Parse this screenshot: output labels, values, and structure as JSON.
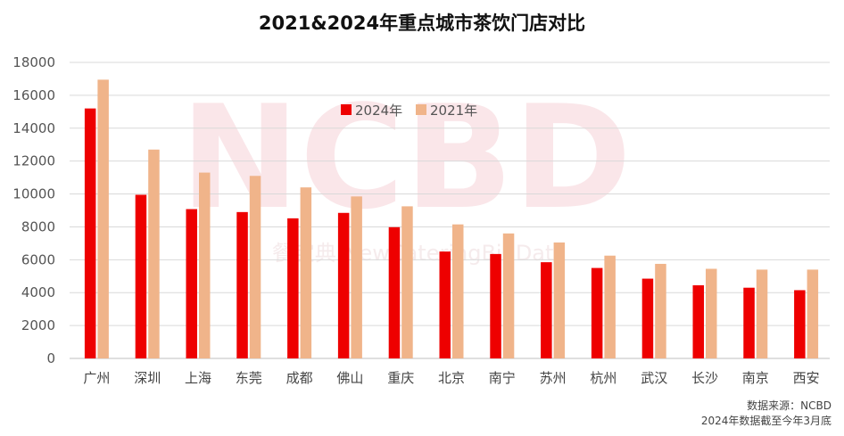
{
  "chart_data": {
    "type": "bar",
    "title": "2021&2024年重点城市茶饮门店对比",
    "categories": [
      "广州",
      "深圳",
      "上海",
      "东莞",
      "成都",
      "佛山",
      "重庆",
      "北京",
      "南宁",
      "苏州",
      "杭州",
      "武汉",
      "长沙",
      "南京",
      "西安"
    ],
    "series": [
      {
        "name": "2024年",
        "color": "#ee0000",
        "values": [
          15200,
          9950,
          9080,
          8900,
          8520,
          8850,
          7980,
          6500,
          6350,
          5850,
          5500,
          4850,
          4450,
          4300,
          4150
        ]
      },
      {
        "name": "2021年",
        "color": "#f0b48a",
        "values": [
          16950,
          12700,
          11300,
          11100,
          10400,
          9850,
          9250,
          8150,
          7600,
          7050,
          6250,
          5750,
          5450,
          5400,
          5400
        ]
      }
    ],
    "ylim": [
      0,
      18000
    ],
    "yticks": [
      "0",
      "2000",
      "4000",
      "6000",
      "8000",
      "10000",
      "12000",
      "14000",
      "16000",
      "18000"
    ],
    "grid": true,
    "legend_position": "top-center",
    "source_note": "数据来源：NCBD",
    "date_note": "2024年数据截至今年3月底",
    "watermark": "NCBD",
    "watermark_sub": "餐宝典  NewCateringBigData"
  }
}
